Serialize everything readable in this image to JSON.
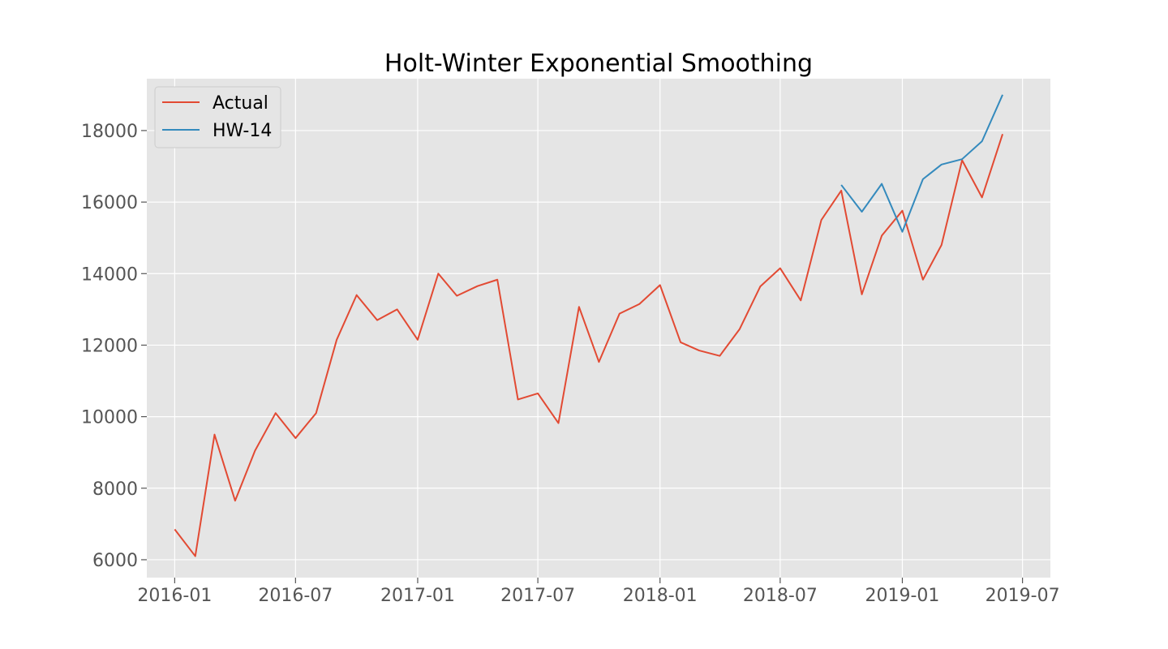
{
  "chart_data": {
    "type": "line",
    "title": "Holt-Winter Exponential Smoothing",
    "xlabel": "",
    "ylabel": "",
    "x_ticks": [
      "2016-01",
      "2016-07",
      "2017-01",
      "2017-07",
      "2018-01",
      "2018-07",
      "2019-01",
      "2019-07"
    ],
    "y_ticks": [
      6000,
      8000,
      10000,
      12000,
      14000,
      16000,
      18000
    ],
    "xlim": [
      "2015-11-20",
      "2019-08-12"
    ],
    "ylim": [
      5500,
      19450
    ],
    "grid": true,
    "legend": "upper-left",
    "background_color": "#e5e5e5",
    "series": [
      {
        "name": "Actual",
        "color": "#e24a33",
        "x": [
          "2016-01",
          "2016-02",
          "2016-03",
          "2016-04",
          "2016-05",
          "2016-06",
          "2016-07",
          "2016-08",
          "2016-09",
          "2016-10",
          "2016-11",
          "2016-12",
          "2017-01",
          "2017-02",
          "2017-03",
          "2017-04",
          "2017-05",
          "2017-06",
          "2017-07",
          "2017-08",
          "2017-09",
          "2017-10",
          "2017-11",
          "2017-12",
          "2018-01",
          "2018-02",
          "2018-03",
          "2018-04",
          "2018-05",
          "2018-06",
          "2018-07",
          "2018-08",
          "2018-09",
          "2018-10",
          "2018-11",
          "2018-12",
          "2019-01",
          "2019-02",
          "2019-03",
          "2019-04",
          "2019-05",
          "2019-06"
        ],
        "values": [
          6850,
          6100,
          9500,
          7650,
          9050,
          10100,
          9400,
          10100,
          12150,
          13400,
          12700,
          13000,
          12150,
          14000,
          13380,
          13650,
          13830,
          10480,
          10650,
          9820,
          13070,
          11530,
          12880,
          13150,
          13680,
          12080,
          11850,
          11700,
          12450,
          13640,
          14150,
          13250,
          15500,
          16320,
          13420,
          15060,
          15760,
          13830,
          14800,
          17170,
          16130,
          17900
        ]
      },
      {
        "name": "HW-14",
        "color": "#348abd",
        "x": [
          "2018-10",
          "2018-11",
          "2018-12",
          "2019-01",
          "2019-02",
          "2019-03",
          "2019-04",
          "2019-05",
          "2019-06"
        ],
        "values": [
          16480,
          15730,
          16510,
          15170,
          16640,
          17050,
          17200,
          17700,
          19000
        ]
      }
    ]
  }
}
